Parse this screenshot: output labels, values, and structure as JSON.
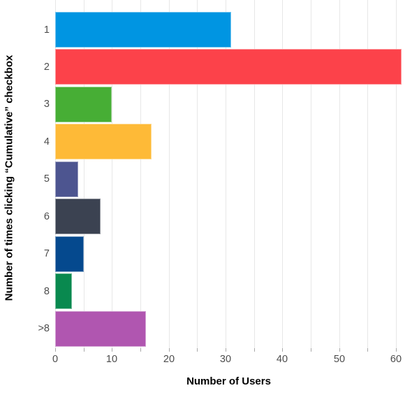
{
  "chart_data": {
    "type": "bar",
    "orientation": "horizontal",
    "title": "",
    "xlabel": "Number of Users",
    "ylabel": "Number of times clicking “Cumulative” checkbox",
    "categories": [
      "1",
      "2",
      "3",
      "4",
      "5",
      "6",
      "7",
      "8",
      ">8"
    ],
    "values": [
      31,
      61,
      10,
      17,
      4,
      8,
      5,
      3,
      16
    ],
    "bar_colors": [
      "#0095e2",
      "#fc424a",
      "#47ae35",
      "#feba37",
      "#4d5590",
      "#3b4251",
      "#05498e",
      "#09894f",
      "#b056b0"
    ],
    "xlim": [
      0,
      61.2
    ],
    "x_tick_values": [
      0,
      10,
      20,
      30,
      40,
      50,
      60
    ],
    "x_tick_labels": [
      "0",
      "10",
      "20",
      "30",
      "40",
      "50",
      "60"
    ],
    "grid_interval": 5,
    "grid": "vertical-only",
    "legend": "none",
    "grid_color": "#e7e7e7",
    "tick_color": "#a8a8a8",
    "tick_label_color": "#4d4d4d",
    "axis_title_color": "#000000",
    "background_color": "#ffffff"
  }
}
